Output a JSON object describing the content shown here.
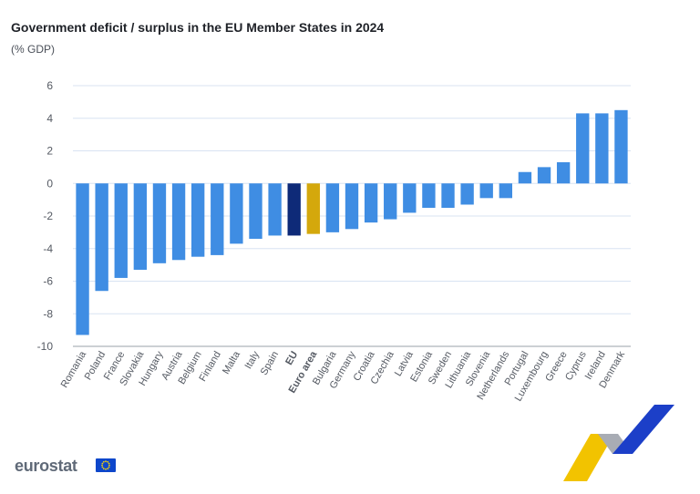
{
  "header": {
    "title": "Government deficit / surplus in the EU Member States in 2024",
    "subtitle": "(% GDP)"
  },
  "footer": {
    "brand": "eurostat"
  },
  "colors": {
    "country": "#3f8de3",
    "eu": "#0e2a78",
    "euro_area": "#d4a80c",
    "grid": "#d8e3f2",
    "tick_label": "#555a63"
  },
  "chart_data": {
    "type": "bar",
    "title": "Government deficit / surplus in the EU Member States in 2024",
    "subtitle": "(% GDP)",
    "xlabel": "",
    "ylabel": "",
    "ylim": [
      -10,
      6
    ],
    "yticks": [
      6,
      4,
      2,
      0,
      -2,
      -4,
      -6,
      -8,
      -10
    ],
    "grid": true,
    "categories": [
      "Romania",
      "Poland",
      "France",
      "Slovakia",
      "Hungary",
      "Austria",
      "Belgium",
      "Finland",
      "Malta",
      "Italy",
      "Spain",
      "EU",
      "Euro area",
      "Bulgaria",
      "Germany",
      "Croatia",
      "Czechia",
      "Latvia",
      "Estonia",
      "Sweden",
      "Lithuania",
      "Slovenia",
      "Netherlands",
      "Portugal",
      "Luxembourg",
      "Greece",
      "Cyprus",
      "Ireland",
      "Denmark"
    ],
    "values": [
      -9.3,
      -6.6,
      -5.8,
      -5.3,
      -4.9,
      -4.7,
      -4.5,
      -4.4,
      -3.7,
      -3.4,
      -3.2,
      -3.2,
      -3.1,
      -3.0,
      -2.8,
      -2.4,
      -2.2,
      -1.8,
      -1.5,
      -1.5,
      -1.3,
      -0.9,
      -0.9,
      0.7,
      1.0,
      1.3,
      4.3,
      4.3,
      4.5
    ],
    "highlight": {
      "EU": "eu",
      "Euro area": "euro_area"
    }
  }
}
